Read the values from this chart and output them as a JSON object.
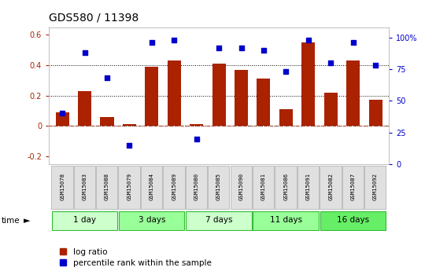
{
  "title": "GDS580 / 11398",
  "samples": [
    "GSM15078",
    "GSM15083",
    "GSM15088",
    "GSM15079",
    "GSM15084",
    "GSM15089",
    "GSM15080",
    "GSM15085",
    "GSM15090",
    "GSM15081",
    "GSM15086",
    "GSM15091",
    "GSM15082",
    "GSM15087",
    "GSM15092"
  ],
  "log_ratio": [
    0.09,
    0.23,
    0.06,
    0.01,
    0.39,
    0.43,
    0.01,
    0.41,
    0.37,
    0.31,
    0.11,
    0.55,
    0.22,
    0.43,
    0.17
  ],
  "percentile_rank": [
    40,
    88,
    68,
    15,
    96,
    98,
    20,
    92,
    92,
    90,
    73,
    98,
    80,
    96,
    78
  ],
  "groups": [
    {
      "label": "1 day",
      "start": 0,
      "end": 3,
      "color": "#ccffcc"
    },
    {
      "label": "3 days",
      "start": 3,
      "end": 6,
      "color": "#99ff99"
    },
    {
      "label": "7 days",
      "start": 6,
      "end": 9,
      "color": "#ccffcc"
    },
    {
      "label": "11 days",
      "start": 9,
      "end": 12,
      "color": "#99ff99"
    },
    {
      "label": "16 days",
      "start": 12,
      "end": 15,
      "color": "#66ee66"
    }
  ],
  "bar_color": "#aa2200",
  "dot_color": "#0000cc",
  "ylim_left": [
    -0.25,
    0.65
  ],
  "ylim_right": [
    0,
    108.33
  ],
  "yticks_left": [
    -0.2,
    0.0,
    0.2,
    0.4,
    0.6
  ],
  "ytick_labels_left": [
    "-0.2",
    "0",
    "0.2",
    "0.4",
    "0.6"
  ],
  "yticks_right": [
    0,
    25,
    50,
    75,
    100
  ],
  "ytick_labels_right": [
    "0",
    "25",
    "50",
    "75",
    "100%"
  ],
  "hlines": [
    0.2,
    0.4
  ],
  "dotted_hlines": [
    0.0
  ],
  "background_color": "#ffffff",
  "legend_log_ratio": "log ratio",
  "legend_percentile": "percentile rank within the sample"
}
